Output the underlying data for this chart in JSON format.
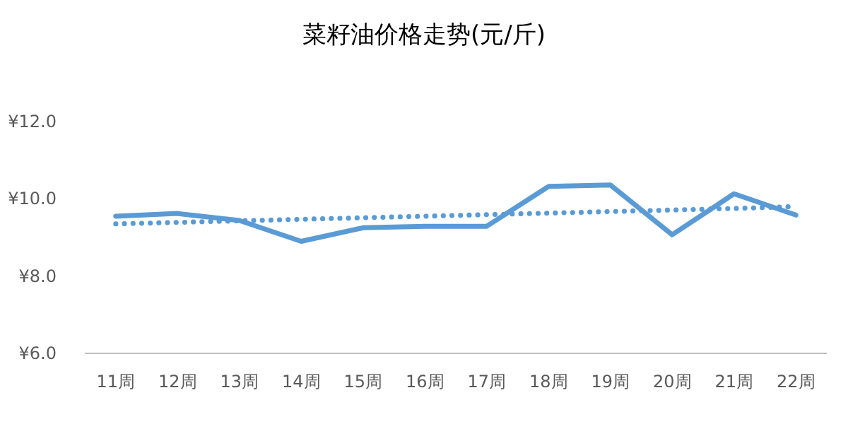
{
  "chart_data": {
    "type": "line",
    "title": "菜籽油价格走势(元/斤)",
    "categories": [
      "11周",
      "12周",
      "13周",
      "14周",
      "15周",
      "16周",
      "17周",
      "18周",
      "19周",
      "20周",
      "21周",
      "22周"
    ],
    "series": [
      {
        "color": "#5b9bd5",
        "values": [
          9.55,
          9.62,
          9.44,
          8.9,
          9.25,
          9.29,
          9.29,
          10.32,
          10.36,
          9.07,
          10.13,
          9.58
        ],
        "line_style": "solid"
      },
      {
        "type": "line",
        "color": "#5b9bd5",
        "line_style": "dotted",
        "values": [
          9.35,
          9.39,
          9.43,
          9.47,
          9.51,
          9.55,
          9.59,
          9.63,
          9.67,
          9.71,
          9.75,
          9.8
        ]
      }
    ],
    "ylim": [
      6,
      12
    ],
    "yticks": [
      {
        "value": 6,
        "label": "¥6.0"
      },
      {
        "value": 8,
        "label": "¥8.0"
      },
      {
        "value": 10,
        "label": "¥10.0"
      },
      {
        "value": 12,
        "label": "¥12.0"
      }
    ],
    "grid": false,
    "marker": "none"
  }
}
